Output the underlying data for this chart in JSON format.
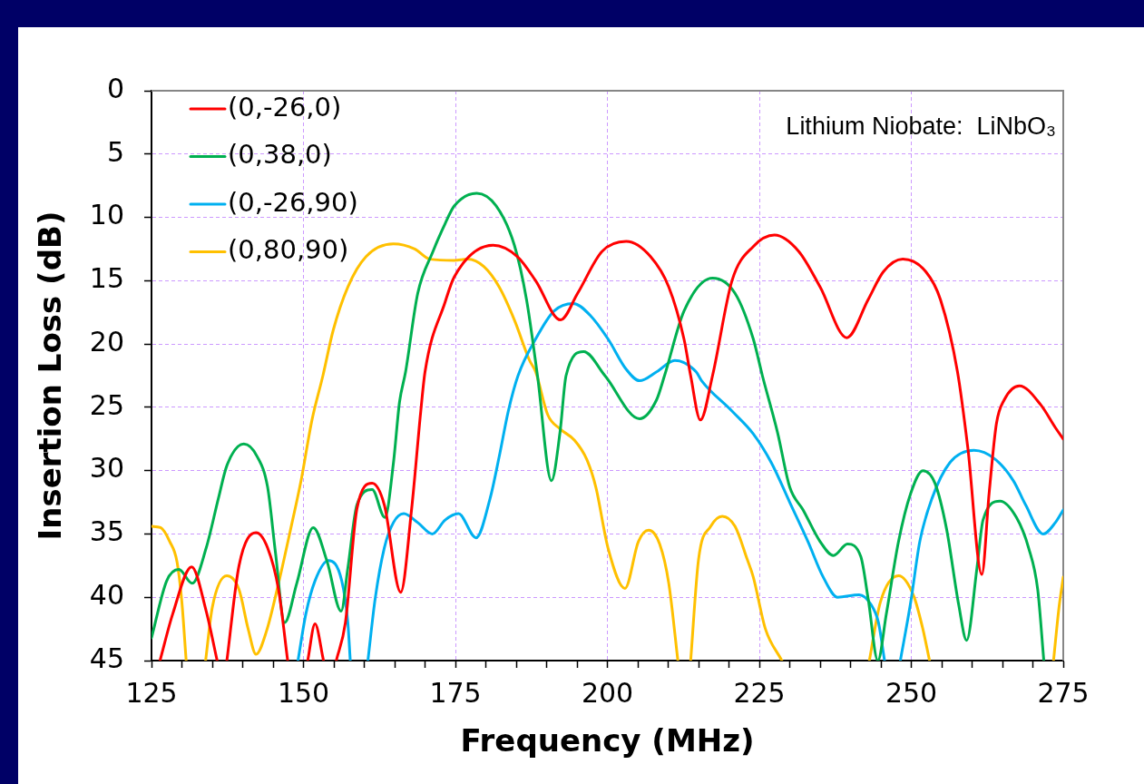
{
  "chart_data": {
    "type": "line",
    "xlabel": "Frequency (MHz)",
    "ylabel": "Insertion Loss (dB)",
    "annotations": [
      "Lithium Niobate:  LiNbO₃"
    ],
    "xlim": [
      125,
      275
    ],
    "xticks": [
      125,
      {
        "value": 130,
        "label": null
      },
      {
        "value": 135,
        "label": null
      },
      {
        "value": 140,
        "label": null
      },
      {
        "value": 145,
        "label": null
      },
      150,
      {
        "value": 155,
        "label": null
      },
      {
        "value": 160,
        "label": null
      },
      {
        "value": 165,
        "label": null
      },
      {
        "value": 170,
        "label": null
      },
      175,
      {
        "value": 180,
        "label": null
      },
      {
        "value": 185,
        "label": null
      },
      {
        "value": 190,
        "label": null
      },
      {
        "value": 195,
        "label": null
      },
      200,
      {
        "value": 205,
        "label": null
      },
      {
        "value": 210,
        "label": null
      },
      {
        "value": 215,
        "label": null
      },
      {
        "value": 220,
        "label": null
      },
      225,
      {
        "value": 230,
        "label": null
      },
      {
        "value": 235,
        "label": null
      },
      {
        "value": 240,
        "label": null
      },
      {
        "value": 245,
        "label": null
      },
      250,
      {
        "value": 255,
        "label": null
      },
      {
        "value": 260,
        "label": null
      },
      {
        "value": 265,
        "label": null
      },
      {
        "value": 270,
        "label": null
      },
      275
    ],
    "ylim": [
      45,
      0
    ],
    "yticks": [
      0,
      5,
      10,
      15,
      20,
      25,
      30,
      35,
      40,
      45
    ],
    "grid": true,
    "legend": "top left",
    "series": [
      {
        "name": "(0,-26,0)",
        "color": "#ff0000",
        "x": [
          126.4,
          128.5,
          131.6,
          134.0,
          135.8,
          136.6,
          137.4,
          139.4,
          142.2,
          144.1,
          145.9,
          147.4,
          149.0,
          150.7,
          151.9,
          153.3,
          154.3,
          155.4,
          156.9,
          158.8,
          161.3,
          163.3,
          166.0,
          167.8,
          169.3,
          170.0,
          173.3,
          174.8,
          181.2,
          185.2,
          188.2,
          192.3,
          195.1,
          199.1,
          203.1,
          207.1,
          210.1,
          212.6,
          213.7,
          215.3,
          217.3,
          220.5,
          224.0,
          227.5,
          231.5,
          235.0,
          239.4,
          242.9,
          245.4,
          248.6,
          252.4,
          254.8,
          257.6,
          259.3,
          261.6,
          262.8,
          264.0,
          265.3,
          267.8,
          271.3,
          273.7,
          275
        ],
        "values": [
          45,
          41.3,
          37.6,
          41.1,
          45,
          null,
          45,
          37.5,
          34.9,
          36.1,
          39.4,
          45,
          null,
          45,
          42.1,
          45,
          null,
          45,
          42.0,
          33.0,
          31.0,
          32.7,
          39.6,
          33.0,
          25.3,
          22.2,
          16.7,
          14.7,
          12.2,
          13.1,
          15.0,
          18.1,
          16.0,
          12.7,
          11.9,
          13.1,
          15.5,
          19.6,
          22.5,
          26.0,
          22.5,
          15.0,
          12.3,
          11.4,
          12.7,
          15.5,
          19.5,
          16.5,
          14.3,
          13.3,
          14.3,
          16.5,
          22.2,
          28.2,
          38.2,
          31.8,
          26.3,
          24.4,
          23.3,
          24.8,
          26.6,
          27.5
        ]
      },
      {
        "name": "(0,38,0)",
        "color": "#00b050",
        "x": [
          125,
          127.5,
          129.5,
          131.7,
          134.0,
          136.0,
          137.4,
          140.2,
          142.4,
          144.1,
          145.4,
          146.9,
          148.9,
          151.6,
          153.9,
          156.2,
          157.3,
          158.8,
          161.3,
          163.4,
          164.8,
          165.8,
          166.8,
          168.8,
          171.3,
          173.3,
          174.8,
          178.5,
          181.7,
          184.7,
          186.7,
          188.5,
          190.8,
          192.2,
          193.2,
          196.1,
          199.6,
          205.3,
          208.1,
          209.4,
          212.6,
          217.3,
          221.0,
          224.0,
          225.5,
          228.0,
          230.0,
          232.2,
          235.0,
          237.2,
          239.5,
          241.7,
          242.9,
          244.5,
          245.9,
          247.9,
          249.9,
          251.9,
          253.9,
          255.8,
          257.8,
          259.1,
          260.8,
          261.8,
          264.6,
          267.3,
          269.3,
          270.8,
          271.8
        ],
        "values": [
          43.2,
          38.7,
          37.8,
          38.9,
          36.1,
          32.2,
          29.6,
          27.9,
          28.9,
          31.3,
          36.5,
          42.0,
          38.9,
          34.5,
          37.2,
          41.1,
          37.7,
          32.7,
          31.5,
          33.7,
          29.4,
          24.6,
          22.2,
          16.0,
          12.7,
          10.5,
          9.1,
          8.1,
          9.1,
          12.2,
          16.5,
          22.5,
          30.8,
          27.0,
          22.5,
          20.6,
          22.5,
          25.9,
          24.4,
          22.5,
          17.4,
          14.8,
          16.0,
          19.6,
          22.5,
          27.0,
          31.3,
          33.1,
          35.6,
          36.7,
          35.8,
          36.8,
          40.1,
          45,
          41.3,
          35.6,
          31.8,
          30.0,
          31.0,
          34.6,
          40.6,
          43.4,
          37.7,
          33.9,
          32.4,
          33.7,
          36.1,
          39.4,
          45
        ]
      },
      {
        "name": "(0,-26,90)",
        "color": "#00b0f0",
        "x": [
          149.1,
          150.4,
          151.9,
          154.1,
          156.3,
          157.3,
          157.7,
          159.2,
          160.6,
          161.8,
          163.3,
          164.8,
          166.5,
          168.8,
          171.2,
          173.3,
          175.5,
          178.4,
          180.7,
          182.2,
          183.7,
          185.3,
          188.2,
          191.2,
          194.4,
          197.1,
          200.1,
          203.1,
          205.3,
          208.1,
          211.1,
          214.6,
          215.5,
          220.5,
          224.0,
          227.0,
          230.0,
          233.0,
          235.5,
          237.9,
          241.4,
          243.4,
          244.6,
          245.6,
          246.9,
          248.2,
          249.9,
          251.4,
          253.4,
          256.3,
          260.3,
          263.8,
          266.8,
          268.8,
          271.7,
          273.7,
          275
        ],
        "values": [
          45,
          41.3,
          38.7,
          37.1,
          38.7,
          42.0,
          45,
          null,
          45,
          40.1,
          36.1,
          34.1,
          33.4,
          34.1,
          35.0,
          33.9,
          33.4,
          35.3,
          32.2,
          28.9,
          25.3,
          22.5,
          19.6,
          17.4,
          16.8,
          17.7,
          19.6,
          22.0,
          22.9,
          22.2,
          21.3,
          22.2,
          22.9,
          25.3,
          27.1,
          29.4,
          32.5,
          35.6,
          38.4,
          40.0,
          39.8,
          40.6,
          42.0,
          45,
          null,
          45,
          40.4,
          35.6,
          32.2,
          29.4,
          28.4,
          29.1,
          30.8,
          32.7,
          35.0,
          34.1,
          33.1
        ]
      },
      {
        "name": "(0,80,90)",
        "color": "#ffc000",
        "x": [
          125,
          126.5,
          128.0,
          129.2,
          130.0,
          130.7,
          132.3,
          133.9,
          135.0,
          137.4,
          139.4,
          140.9,
          142.2,
          143.9,
          145.9,
          147.9,
          149.6,
          151.4,
          153.2,
          154.9,
          157.3,
          160.3,
          164.8,
          168.3,
          170.8,
          174.8,
          177.0,
          179.7,
          182.2,
          184.7,
          187.2,
          188.2,
          190.2,
          192.2,
          194.6,
          196.6,
          198.1,
          200.1,
          202.9,
          205.1,
          206.8,
          208.6,
          210.1,
          211.6,
          212.7,
          213.7,
          215.0,
          217.0,
          218.9,
          221.0,
          223.0,
          224.0,
          226.0,
          228.7,
          236.0,
          243.1,
          244.9,
          247.9,
          250.4,
          251.9,
          253.0,
          263.0,
          273.4,
          274.3,
          275
        ],
        "values": [
          34.4,
          34.5,
          35.6,
          37.2,
          40.4,
          45,
          null,
          45,
          40.8,
          38.3,
          39.4,
          42.5,
          44.5,
          42.7,
          38.9,
          34.6,
          30.8,
          26.0,
          22.5,
          18.9,
          15.5,
          13.1,
          12.1,
          12.5,
          13.3,
          13.4,
          13.3,
          13.9,
          15.5,
          18.1,
          21.3,
          22.2,
          25.6,
          26.7,
          27.6,
          29.1,
          31.3,
          36.1,
          39.3,
          35.6,
          34.7,
          35.8,
          38.9,
          45,
          null,
          45,
          37.0,
          34.4,
          33.6,
          34.4,
          37.0,
          38.4,
          42.5,
          45,
          null,
          45,
          40.4,
          38.3,
          39.9,
          42.5,
          45,
          null,
          45,
          40.8,
          38.4
        ]
      }
    ]
  }
}
